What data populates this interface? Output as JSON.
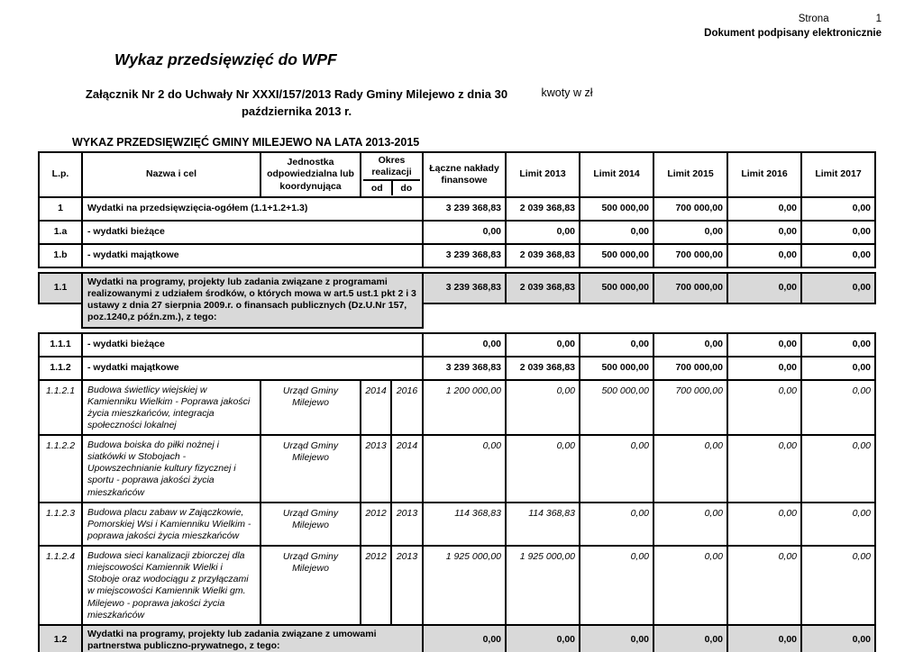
{
  "page_header": {
    "page_label": "Strona",
    "page_number": "1",
    "signed_note": "Dokument podpisany elektronicznie"
  },
  "document": {
    "title": "Wykaz przedsięwzięć do WPF",
    "attachment_note": "Załącznik Nr 2 do Uchwały Nr XXXI/157/2013  Rady Gminy Milejewo  z dnia  30 października 2013 r.",
    "amounts_note": "kwoty w zł",
    "table_title": "WYKAZ PRZEDSIĘWZIĘĆ GMINY MILEJEWO NA LATA 2013-2015"
  },
  "colors": {
    "row_highlight": "#d9d9d9",
    "border": "#000000",
    "text": "#000000",
    "background": "#ffffff"
  },
  "table": {
    "headers": {
      "lp": "L.p.",
      "name": "Nazwa i cel",
      "unit": "Jednostka odpowiedzialna lub koordynująca",
      "period": "Okres realizacji",
      "from": "od",
      "to": "do",
      "total": "Łączne nakłady finansowe",
      "limits": [
        "Limit 2013",
        "Limit 2014",
        "Limit 2015",
        "Limit 2016",
        "Limit 2017"
      ]
    },
    "rows": [
      {
        "lp": "1",
        "kind": "aggregate",
        "name": "Wydatki na przedsięwzięcia-ogółem (1.1+1.2+1.3)",
        "values": [
          "3 239 368,83",
          "2 039 368,83",
          "500 000,00",
          "700 000,00",
          "0,00",
          "0,00"
        ]
      },
      {
        "lp": "1.a",
        "kind": "aggregate",
        "name": "- wydatki bieżące",
        "values": [
          "0,00",
          "0,00",
          "0,00",
          "0,00",
          "0,00",
          "0,00"
        ]
      },
      {
        "lp": "1.b",
        "kind": "aggregate",
        "name": "- wydatki majątkowe",
        "values": [
          "3 239 368,83",
          "2 039 368,83",
          "500 000,00",
          "700 000,00",
          "0,00",
          "0,00"
        ]
      },
      {
        "lp": "1.1",
        "kind": "group",
        "name": "Wydatki na programy, projekty lub zadania związane z programami realizowanymi z udziałem środków, o których mowa w art.5 ust.1 pkt 2 i 3 ustawy z dnia 27 sierpnia 2009.r. o finansach publicznych (Dz.U.Nr 157, poz.1240,z późn.zm.), z tego:",
        "values": [
          "3 239 368,83",
          "2 039 368,83",
          "500 000,00",
          "700 000,00",
          "0,00",
          "0,00"
        ]
      },
      {
        "lp": "1.1.1",
        "kind": "aggregate",
        "name": "- wydatki bieżące",
        "values": [
          "0,00",
          "0,00",
          "0,00",
          "0,00",
          "0,00",
          "0,00"
        ]
      },
      {
        "lp": "1.1.2",
        "kind": "aggregate",
        "name": "- wydatki majątkowe",
        "values": [
          "3 239 368,83",
          "2 039 368,83",
          "500 000,00",
          "700 000,00",
          "0,00",
          "0,00"
        ]
      },
      {
        "lp": "1.1.2.1",
        "kind": "detail",
        "name": "Budowa  świetlicy wiejskiej w Kamienniku Wielkim - Poprawa jakości życia mieszkańców, integracja społeczności lokalnej",
        "unit": "Urząd Gminy Milejewo",
        "od": "2014",
        "do": "2016",
        "values": [
          "1 200 000,00",
          "0,00",
          "500 000,00",
          "700 000,00",
          "0,00",
          "0,00"
        ]
      },
      {
        "lp": "1.1.2.2",
        "kind": "detail",
        "name": "Budowa boiska do piłki nożnej i siatkówki w Stobojach  - Upowszechnianie kultury fizycznej i sportu - poprawa jakości życia mieszkańców",
        "unit": "Urząd Gminy Milejewo",
        "od": "2013",
        "do": "2014",
        "values": [
          "0,00",
          "0,00",
          "0,00",
          "0,00",
          "0,00",
          "0,00"
        ]
      },
      {
        "lp": "1.1.2.3",
        "kind": "detail",
        "name": "Budowa placu zabaw w Zajączkowie, Pomorskiej Wsi i Kamienniku Wielkim - poprawa jakości życia mieszkańców",
        "unit": "Urząd Gminy Milejewo",
        "od": "2012",
        "do": "2013",
        "values": [
          "114 368,83",
          "114 368,83",
          "0,00",
          "0,00",
          "0,00",
          "0,00"
        ]
      },
      {
        "lp": "1.1.2.4",
        "kind": "detail",
        "name": "Budowa sieci kanalizacji zbiorczej dla miejscowości Kamiennik Wielki i Stoboje oraz wodociągu z przyłączami w miejscowości Kamiennik Wielki gm. Milejewo - poprawa jakości życia mieszkańców",
        "unit": "Urząd Gminy Milejewo",
        "od": "2012",
        "do": "2013",
        "values": [
          "1 925 000,00",
          "1 925 000,00",
          "0,00",
          "0,00",
          "0,00",
          "0,00"
        ]
      },
      {
        "lp": "1.2",
        "kind": "group",
        "name": "Wydatki na programy, projekty lub zadania związane z umowami partnerstwa publiczno-prywatnego, z tego:",
        "values": [
          "0,00",
          "0,00",
          "0,00",
          "0,00",
          "0,00",
          "0,00"
        ]
      }
    ]
  }
}
